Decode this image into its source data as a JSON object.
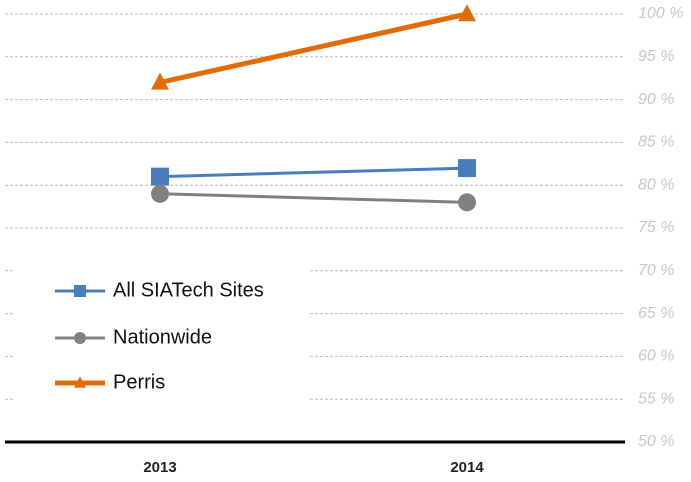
{
  "chart_data": {
    "type": "line",
    "categories": [
      "2013",
      "2014"
    ],
    "series": [
      {
        "name": "All SIATech Sites",
        "color": "#4a7ebb",
        "marker": "square",
        "values": [
          81,
          82
        ]
      },
      {
        "name": "Nationwide",
        "color": "#808080",
        "marker": "circle",
        "values": [
          79,
          78
        ]
      },
      {
        "name": "Perris",
        "color": "#e36c0a",
        "marker": "triangle",
        "values": [
          92,
          100
        ]
      }
    ],
    "ylim": [
      50,
      100
    ],
    "yticks": [
      {
        "value": 50,
        "label": "50 %"
      },
      {
        "value": 55,
        "label": "55 %"
      },
      {
        "value": 60,
        "label": "60 %"
      },
      {
        "value": 65,
        "label": "65 %"
      },
      {
        "value": 70,
        "label": "70 %"
      },
      {
        "value": 75,
        "label": "75 %"
      },
      {
        "value": 80,
        "label": "80 %"
      },
      {
        "value": 85,
        "label": "85 %"
      },
      {
        "value": 90,
        "label": "90 %"
      },
      {
        "value": 95,
        "label": "95 %"
      },
      {
        "value": 100,
        "label": "100 %"
      }
    ],
    "grid": true,
    "legend": "left"
  }
}
